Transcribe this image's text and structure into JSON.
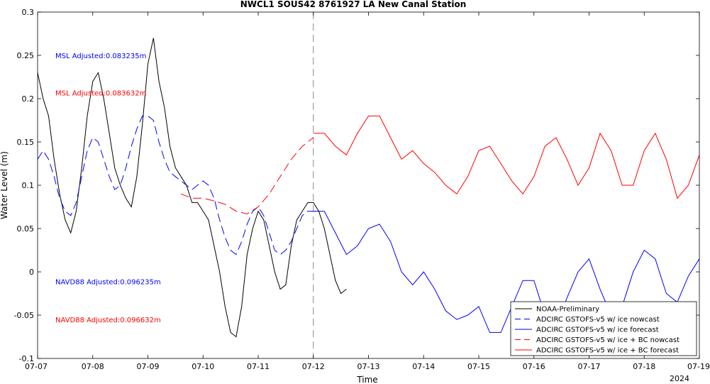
{
  "chart_data": {
    "type": "line",
    "title": "NWCL1 SOUS42 8761927 LA New Canal Station",
    "xlabel": "Time",
    "ylabel": "Water Level (m)",
    "year_label": "2024",
    "xlim": [
      0,
      12
    ],
    "ylim": [
      -0.1,
      0.3
    ],
    "x_tick_labels": [
      "07-07",
      "07-08",
      "07-09",
      "07-10",
      "07-11",
      "07-12",
      "07-13",
      "07-14",
      "07-15",
      "07-16",
      "07-17",
      "07-18",
      "07-19"
    ],
    "y_ticks": [
      -0.1,
      -0.05,
      0,
      0.05,
      0.1,
      0.15,
      0.2,
      0.25,
      0.3
    ],
    "y_tick_labels": [
      "-0.1",
      "-0.05",
      "0",
      "0.05",
      "0.1",
      "0.15",
      "0.2",
      "0.25",
      "0.3"
    ],
    "vline_x": 5.0,
    "annotations": [
      {
        "text": "MSL Adjusted:0.083235m",
        "color": "#0000ff",
        "y": 0.25
      },
      {
        "text": "MSL Adjusted:0.083632m",
        "color": "#ff0000",
        "y": 0.207
      },
      {
        "text": "NAVD88 Adjusted:0.096235m",
        "color": "#0000ff",
        "y": -0.011
      },
      {
        "text": "NAVD88 Adjusted:0.096632m",
        "color": "#ff0000",
        "y": -0.055
      }
    ],
    "legend_position": "bottom-right",
    "series": [
      {
        "name": "NOAA-Preliminary",
        "color": "#000000",
        "dash": "solid",
        "x": [
          0.0,
          0.1,
          0.2,
          0.3,
          0.4,
          0.5,
          0.6,
          0.7,
          0.8,
          0.9,
          1.0,
          1.1,
          1.2,
          1.3,
          1.4,
          1.5,
          1.6,
          1.7,
          1.8,
          1.9,
          2.0,
          2.1,
          2.2,
          2.3,
          2.4,
          2.5,
          2.6,
          2.7,
          2.8,
          2.9,
          3.0,
          3.1,
          3.2,
          3.3,
          3.4,
          3.5,
          3.6,
          3.7,
          3.8,
          3.9,
          4.0,
          4.1,
          4.2,
          4.3,
          4.4,
          4.5,
          4.6,
          4.7,
          4.8,
          4.9,
          5.0,
          5.1,
          5.2,
          5.3,
          5.4,
          5.5,
          5.6
        ],
        "y": [
          0.23,
          0.2,
          0.18,
          0.13,
          0.09,
          0.06,
          0.045,
          0.07,
          0.12,
          0.18,
          0.22,
          0.23,
          0.2,
          0.16,
          0.12,
          0.1,
          0.085,
          0.075,
          0.11,
          0.17,
          0.24,
          0.27,
          0.22,
          0.19,
          0.145,
          0.12,
          0.11,
          0.1,
          0.08,
          0.08,
          0.07,
          0.06,
          0.03,
          0.0,
          -0.04,
          -0.07,
          -0.075,
          -0.04,
          0.02,
          0.05,
          0.07,
          0.06,
          0.03,
          0.0,
          -0.02,
          -0.015,
          0.03,
          0.06,
          0.07,
          0.08,
          0.08,
          0.07,
          0.05,
          0.02,
          -0.01,
          -0.025,
          -0.02
        ]
      },
      {
        "name": "ADCIRC GSTOFS-v5 w/ ice nowcast",
        "color": "#0000ff",
        "dash": "dashed",
        "x": [
          0.0,
          0.1,
          0.2,
          0.3,
          0.4,
          0.5,
          0.6,
          0.7,
          0.8,
          0.9,
          1.0,
          1.1,
          1.2,
          1.3,
          1.4,
          1.5,
          1.6,
          1.7,
          1.8,
          1.9,
          2.0,
          2.1,
          2.2,
          2.3,
          2.4,
          2.5,
          2.6,
          2.7,
          2.8,
          2.9,
          3.0,
          3.1,
          3.2,
          3.3,
          3.4,
          3.5,
          3.6,
          3.7,
          3.8,
          3.9,
          4.0,
          4.1,
          4.2,
          4.3,
          4.4,
          4.5,
          4.6,
          4.7,
          4.8,
          4.9,
          5.0
        ],
        "y": [
          0.13,
          0.14,
          0.13,
          0.11,
          0.085,
          0.07,
          0.065,
          0.08,
          0.11,
          0.14,
          0.155,
          0.15,
          0.13,
          0.11,
          0.095,
          0.1,
          0.12,
          0.145,
          0.165,
          0.18,
          0.18,
          0.175,
          0.15,
          0.13,
          0.115,
          0.11,
          0.105,
          0.1,
          0.095,
          0.1,
          0.105,
          0.1,
          0.085,
          0.06,
          0.04,
          0.025,
          0.02,
          0.035,
          0.055,
          0.07,
          0.075,
          0.065,
          0.045,
          0.025,
          0.02,
          0.025,
          0.035,
          0.05,
          0.065,
          0.07,
          0.07
        ]
      },
      {
        "name": "ADCIRC GSTOFS-v5 w/ ice forecast",
        "color": "#0000ff",
        "dash": "solid",
        "x": [
          5.0,
          5.2,
          5.4,
          5.6,
          5.8,
          6.0,
          6.2,
          6.4,
          6.6,
          6.8,
          7.0,
          7.2,
          7.4,
          7.6,
          7.8,
          8.0,
          8.2,
          8.4,
          8.6,
          8.8,
          9.0,
          9.2,
          9.4,
          9.6,
          9.8,
          10.0,
          10.2,
          10.4,
          10.6,
          10.8,
          11.0,
          11.2,
          11.4,
          11.6,
          11.8,
          12.0
        ],
        "y": [
          0.07,
          0.07,
          0.045,
          0.02,
          0.03,
          0.05,
          0.055,
          0.035,
          0.0,
          -0.015,
          0.0,
          -0.02,
          -0.045,
          -0.055,
          -0.05,
          -0.04,
          -0.07,
          -0.07,
          -0.04,
          -0.01,
          -0.01,
          -0.05,
          -0.065,
          -0.03,
          0.0,
          0.015,
          -0.02,
          -0.05,
          -0.04,
          0.0,
          0.025,
          0.015,
          -0.025,
          -0.035,
          -0.005,
          0.015
        ]
      },
      {
        "name": "ADCIRC GSTOFS-v5 w/ ice + BC nowcast",
        "color": "#ff0000",
        "dash": "dashed",
        "x": [
          2.6,
          2.8,
          3.0,
          3.2,
          3.4,
          3.6,
          3.8,
          4.0,
          4.2,
          4.4,
          4.6,
          4.8,
          5.0
        ],
        "y": [
          0.09,
          0.085,
          0.085,
          0.082,
          0.078,
          0.07,
          0.067,
          0.075,
          0.09,
          0.11,
          0.13,
          0.145,
          0.155
        ]
      },
      {
        "name": "ADCIRC GSTOFS-v5 w/ ice + BC forecast",
        "color": "#ff0000",
        "dash": "solid",
        "x": [
          5.0,
          5.2,
          5.4,
          5.6,
          5.8,
          6.0,
          6.2,
          6.4,
          6.6,
          6.8,
          7.0,
          7.2,
          7.4,
          7.6,
          7.8,
          8.0,
          8.2,
          8.4,
          8.6,
          8.8,
          9.0,
          9.2,
          9.4,
          9.6,
          9.8,
          10.0,
          10.2,
          10.4,
          10.6,
          10.8,
          11.0,
          11.2,
          11.4,
          11.6,
          11.8,
          12.0
        ],
        "y": [
          0.16,
          0.16,
          0.145,
          0.135,
          0.16,
          0.18,
          0.18,
          0.155,
          0.13,
          0.14,
          0.125,
          0.115,
          0.1,
          0.09,
          0.11,
          0.14,
          0.145,
          0.125,
          0.105,
          0.09,
          0.11,
          0.145,
          0.155,
          0.13,
          0.1,
          0.12,
          0.16,
          0.14,
          0.1,
          0.1,
          0.14,
          0.16,
          0.13,
          0.085,
          0.1,
          0.135
        ]
      }
    ]
  }
}
